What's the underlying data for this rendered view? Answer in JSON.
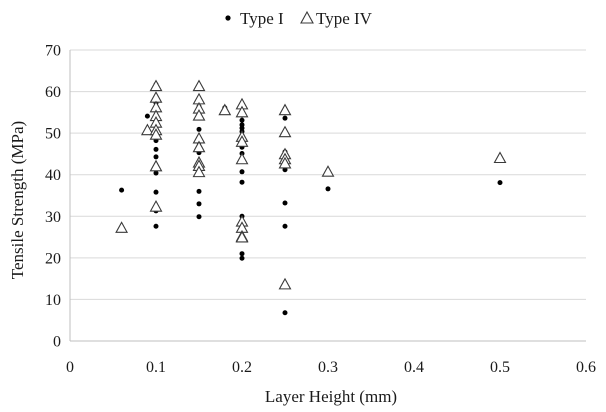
{
  "chart_data": {
    "type": "scatter",
    "xlabel": "Layer Height (mm)",
    "ylabel": "Tensile Strength (MPa)",
    "xlim": [
      0,
      0.6
    ],
    "ylim": [
      0,
      70
    ],
    "x_ticks": [
      "0",
      "0.1",
      "0.2",
      "0.3",
      "0.4",
      "0.5",
      "0.6"
    ],
    "y_ticks": [
      "0",
      "10",
      "20",
      "30",
      "40",
      "50",
      "60",
      "70"
    ],
    "grid": "horizontal",
    "legend_position": "top-center",
    "series": [
      {
        "name": "Type I",
        "marker": "dot",
        "color": "#000000",
        "points": [
          [
            0.06,
            36.3
          ],
          [
            0.09,
            54.1
          ],
          [
            0.1,
            61.7
          ],
          [
            0.1,
            57.3
          ],
          [
            0.1,
            55.5
          ],
          [
            0.1,
            53.6
          ],
          [
            0.1,
            52.4
          ],
          [
            0.1,
            51.0
          ],
          [
            0.1,
            50.3
          ],
          [
            0.1,
            49.4
          ],
          [
            0.1,
            48.2
          ],
          [
            0.1,
            46.1
          ],
          [
            0.1,
            44.3
          ],
          [
            0.1,
            40.4
          ],
          [
            0.1,
            35.8
          ],
          [
            0.1,
            31.3
          ],
          [
            0.1,
            27.6
          ],
          [
            0.15,
            57.9
          ],
          [
            0.15,
            56.4
          ],
          [
            0.15,
            54.2
          ],
          [
            0.15,
            50.9
          ],
          [
            0.15,
            47.8
          ],
          [
            0.15,
            45.3
          ],
          [
            0.15,
            43.0
          ],
          [
            0.15,
            40.6
          ],
          [
            0.15,
            36.0
          ],
          [
            0.15,
            33.0
          ],
          [
            0.15,
            29.9
          ],
          [
            0.18,
            56.1
          ],
          [
            0.2,
            56.8
          ],
          [
            0.2,
            54.3
          ],
          [
            0.2,
            53.1
          ],
          [
            0.2,
            52.0
          ],
          [
            0.2,
            51.2
          ],
          [
            0.2,
            50.4
          ],
          [
            0.2,
            49.4
          ],
          [
            0.2,
            48.6
          ],
          [
            0.2,
            47.6
          ],
          [
            0.2,
            46.6
          ],
          [
            0.2,
            45.1
          ],
          [
            0.2,
            43.4
          ],
          [
            0.2,
            40.7
          ],
          [
            0.2,
            38.2
          ],
          [
            0.2,
            30.0
          ],
          [
            0.2,
            27.2
          ],
          [
            0.2,
            24.9
          ],
          [
            0.2,
            21.0
          ],
          [
            0.2,
            19.9
          ],
          [
            0.25,
            53.6
          ],
          [
            0.25,
            45.5
          ],
          [
            0.25,
            41.2
          ],
          [
            0.25,
            33.2
          ],
          [
            0.25,
            27.6
          ],
          [
            0.25,
            6.8
          ],
          [
            0.3,
            36.6
          ],
          [
            0.5,
            38.1
          ]
        ]
      },
      {
        "name": "Type IV",
        "marker": "open-triangle",
        "color": "#3a3a3a",
        "points": [
          [
            0.06,
            27.1
          ],
          [
            0.09,
            50.6
          ],
          [
            0.1,
            61.2
          ],
          [
            0.1,
            58.4
          ],
          [
            0.1,
            56.1
          ],
          [
            0.1,
            54.0
          ],
          [
            0.1,
            52.4
          ],
          [
            0.1,
            50.6
          ],
          [
            0.1,
            49.5
          ],
          [
            0.1,
            41.9
          ],
          [
            0.1,
            32.2
          ],
          [
            0.15,
            61.2
          ],
          [
            0.15,
            58.0
          ],
          [
            0.15,
            55.8
          ],
          [
            0.15,
            54.1
          ],
          [
            0.15,
            48.6
          ],
          [
            0.15,
            46.5
          ],
          [
            0.15,
            42.8
          ],
          [
            0.15,
            42.0
          ],
          [
            0.15,
            40.5
          ],
          [
            0.18,
            55.4
          ],
          [
            0.2,
            56.8
          ],
          [
            0.2,
            54.9
          ],
          [
            0.2,
            49.0
          ],
          [
            0.2,
            47.8
          ],
          [
            0.2,
            43.6
          ],
          [
            0.2,
            28.6
          ],
          [
            0.2,
            27.1
          ],
          [
            0.2,
            25.0
          ],
          [
            0.2,
            24.8
          ],
          [
            0.25,
            55.4
          ],
          [
            0.25,
            50.1
          ],
          [
            0.25,
            44.8
          ],
          [
            0.25,
            43.6
          ],
          [
            0.25,
            42.6
          ],
          [
            0.25,
            13.5
          ],
          [
            0.3,
            40.6
          ],
          [
            0.5,
            43.9
          ]
        ]
      }
    ]
  }
}
